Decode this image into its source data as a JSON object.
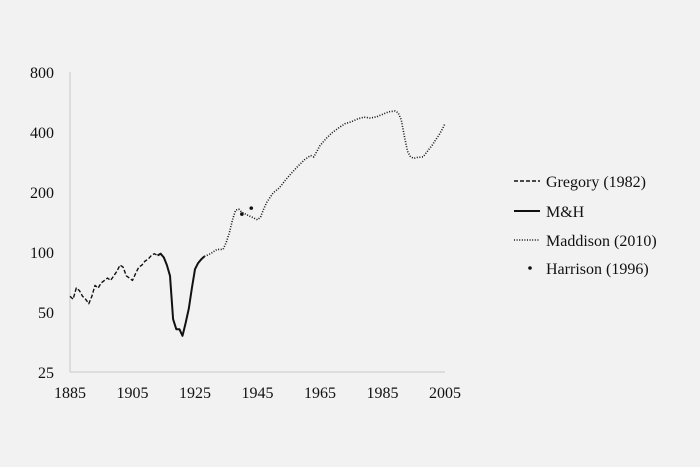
{
  "chart_data": {
    "type": "line",
    "title": "",
    "xlabel": "",
    "ylabel": "",
    "yscale": "log",
    "xlim": [
      1885,
      2005
    ],
    "ylim": [
      25,
      800
    ],
    "x_ticks": [
      "1885",
      "1905",
      "1925",
      "1945",
      "1965",
      "1985",
      "2005"
    ],
    "y_ticks": [
      "800",
      "400",
      "200",
      "100",
      "50",
      "25"
    ],
    "grid": false,
    "legend_position": "right",
    "series": [
      {
        "name": "Gregory (1982)",
        "style": "dashed",
        "x": [
          1885,
          1886,
          1887,
          1888,
          1889,
          1890,
          1891,
          1892,
          1893,
          1894,
          1895,
          1896,
          1897,
          1898,
          1899,
          1900,
          1901,
          1902,
          1903,
          1904,
          1905,
          1906,
          1907,
          1908,
          1909,
          1910,
          1911,
          1912,
          1913
        ],
        "y": [
          60,
          58,
          66,
          64,
          60,
          58,
          55,
          60,
          68,
          66,
          70,
          72,
          74,
          72,
          76,
          80,
          86,
          84,
          76,
          74,
          72,
          78,
          84,
          86,
          90,
          92,
          96,
          98,
          96
        ]
      },
      {
        "name": "M&H",
        "style": "solid",
        "x": [
          1913,
          1914,
          1915,
          1916,
          1917,
          1918,
          1919,
          1920,
          1921,
          1922,
          1923,
          1924,
          1925,
          1926,
          1927,
          1928
        ],
        "y": [
          96,
          98,
          94,
          86,
          76,
          46,
          41,
          41,
          38,
          44,
          52,
          66,
          82,
          88,
          92,
          95
        ]
      },
      {
        "name": "Maddison (2010)",
        "style": "dotted",
        "x": [
          1928,
          1930,
          1932,
          1934,
          1935,
          1936,
          1937,
          1938,
          1939,
          1940,
          1945,
          1946,
          1947,
          1948,
          1950,
          1952,
          1954,
          1956,
          1958,
          1960,
          1962,
          1963,
          1964,
          1965,
          1967,
          1969,
          1971,
          1973,
          1975,
          1977,
          1979,
          1981,
          1983,
          1985,
          1987,
          1989,
          1990,
          1991,
          1992,
          1993,
          1994,
          1995,
          1996,
          1998,
          1999,
          2000,
          2001,
          2002,
          2003,
          2004,
          2005
        ],
        "y": [
          95,
          98,
          103,
          103,
          112,
          125,
          145,
          162,
          164,
          158,
          145,
          150,
          165,
          178,
          198,
          210,
          230,
          250,
          270,
          290,
          305,
          300,
          320,
          342,
          372,
          398,
          420,
          440,
          450,
          465,
          475,
          470,
          476,
          490,
          505,
          510,
          500,
          460,
          380,
          320,
          300,
          295,
          298,
          300,
          315,
          330,
          345,
          365,
          385,
          410,
          440
        ]
      },
      {
        "name": "Harrison (1996)",
        "style": "marker",
        "x": [
          1940,
          1943
        ],
        "y": [
          155,
          166
        ]
      }
    ]
  }
}
